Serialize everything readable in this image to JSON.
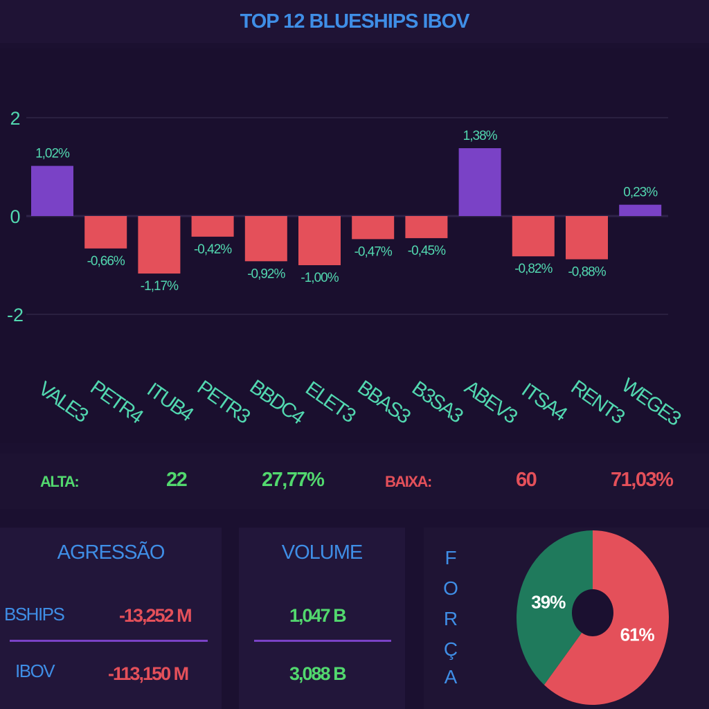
{
  "header": {
    "title": "TOP 12 BLUESHIPS IBOV"
  },
  "colors": {
    "positive": "#7a42c6",
    "negative": "#e4505a",
    "label": "#52d8b0",
    "pie_green": "#1f7a5c",
    "pie_red": "#e4505a"
  },
  "chart_data": [
    {
      "type": "bar",
      "categories": [
        "VALE3",
        "PETR4",
        "ITUB4",
        "PETR3",
        "BBDC4",
        "ELET3",
        "BBAS3",
        "B3SA3",
        "ABEV3",
        "ITSA4",
        "RENT3",
        "WEGE3"
      ],
      "values": [
        1.02,
        -0.66,
        -1.17,
        -0.42,
        -0.92,
        -1.0,
        -0.47,
        -0.45,
        1.38,
        -0.82,
        -0.88,
        0.23
      ],
      "value_labels": [
        "1,02%",
        "-0,66%",
        "-1,17%",
        "-0,42%",
        "-0,92%",
        "-1,00%",
        "-0,47%",
        "-0,45%",
        "1,38%",
        "-0,82%",
        "-0,88%",
        "0,23%"
      ],
      "yticks": [
        "2",
        "0",
        "-2"
      ],
      "ylim": [
        -2,
        2
      ],
      "grid": true
    },
    {
      "type": "pie",
      "donut": true,
      "values": [
        39,
        61
      ],
      "labels": [
        "39%",
        "61%"
      ]
    }
  ],
  "stats": {
    "alta_label": "ALTA:",
    "alta_count": "22",
    "alta_pct": "27,77%",
    "baixa_label": "BAIXA:",
    "baixa_count": "60",
    "baixa_pct": "71,03%"
  },
  "agressao": {
    "title": "AGRESSÃO",
    "rows": [
      {
        "label": "BSHIPS",
        "value": "-13,252 M"
      },
      {
        "label": "IBOV",
        "value": "-113,150 M"
      }
    ]
  },
  "volume": {
    "title": "VOLUME",
    "rows": [
      {
        "value": "1,047 B"
      },
      {
        "value": "3,088 B"
      }
    ]
  },
  "forca": {
    "letters": [
      "F",
      "O",
      "R",
      "Ç",
      "A"
    ]
  }
}
